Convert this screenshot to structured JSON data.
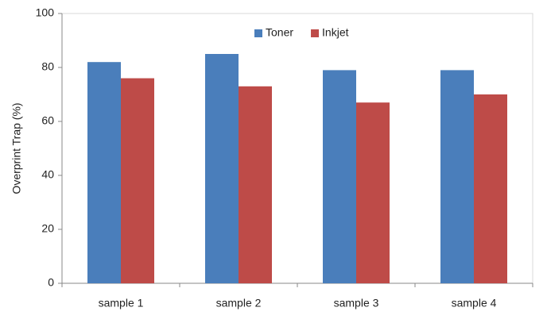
{
  "chart_data": {
    "type": "bar",
    "y_label": "Overprint Trap (%)",
    "categories": [
      "sample 1",
      "sample 2",
      "sample 3",
      "sample 4"
    ],
    "series": [
      {
        "name": "Toner",
        "color": "#4a7ebb",
        "values": [
          82,
          85,
          79,
          79
        ]
      },
      {
        "name": "Inkjet",
        "color": "#be4b48",
        "values": [
          76,
          73,
          67,
          70
        ]
      }
    ],
    "ylim": [
      0,
      100
    ],
    "yticks": [
      0,
      20,
      40,
      60,
      80,
      100
    ],
    "legend": "top"
  }
}
